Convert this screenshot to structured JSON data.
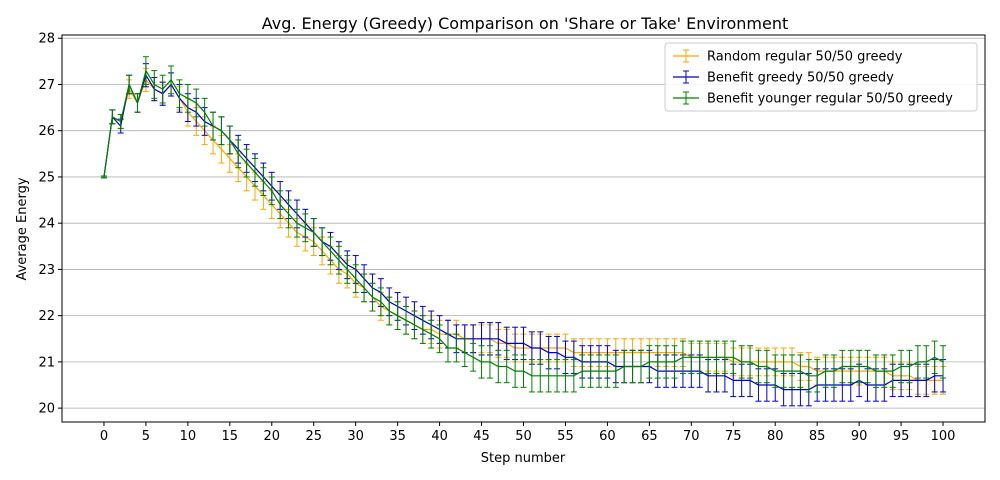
{
  "chart_data": {
    "type": "line",
    "title": "Avg. Energy (Greedy) Comparison on 'Share or Take' Environment",
    "xlabel": "Step number",
    "ylabel": "Average Energy",
    "xlim": [
      -5,
      105
    ],
    "ylim": [
      19.7,
      28.07
    ],
    "xticks": [
      0,
      5,
      10,
      15,
      20,
      25,
      30,
      35,
      40,
      45,
      50,
      55,
      60,
      65,
      70,
      75,
      80,
      85,
      90,
      95,
      100
    ],
    "yticks": [
      20,
      21,
      22,
      23,
      24,
      25,
      26,
      27,
      28
    ],
    "grid": "horizontal",
    "legend_position": "top-right",
    "series": [
      {
        "name": "Random regular 50/50 greedy",
        "color": "#ffa500",
        "x": [
          0,
          1,
          2,
          3,
          4,
          5,
          6,
          7,
          8,
          9,
          10,
          11,
          12,
          13,
          14,
          15,
          16,
          17,
          18,
          19,
          20,
          21,
          22,
          23,
          24,
          25,
          26,
          27,
          28,
          29,
          30,
          31,
          32,
          33,
          34,
          35,
          36,
          37,
          38,
          39,
          40,
          41,
          42,
          43,
          44,
          45,
          46,
          47,
          48,
          49,
          50,
          51,
          52,
          53,
          54,
          55,
          56,
          57,
          58,
          59,
          60,
          61,
          62,
          63,
          64,
          65,
          66,
          67,
          68,
          69,
          70,
          71,
          72,
          73,
          74,
          75,
          76,
          77,
          78,
          79,
          80,
          81,
          82,
          83,
          84,
          85,
          86,
          87,
          88,
          89,
          90,
          91,
          92,
          93,
          94,
          95,
          96,
          97,
          98,
          99,
          100
        ],
        "y": [
          25.0,
          26.3,
          26.2,
          26.9,
          26.6,
          27.1,
          26.9,
          26.8,
          27.0,
          26.7,
          26.4,
          26.2,
          26.0,
          25.8,
          25.6,
          25.4,
          25.2,
          25.0,
          24.8,
          24.6,
          24.4,
          24.2,
          24.0,
          23.8,
          23.7,
          23.6,
          23.4,
          23.2,
          23.0,
          22.9,
          22.7,
          22.6,
          22.4,
          22.2,
          22.1,
          22.0,
          21.9,
          21.8,
          21.7,
          21.7,
          21.6,
          21.6,
          21.6,
          21.5,
          21.5,
          21.5,
          21.5,
          21.4,
          21.4,
          21.3,
          21.3,
          21.3,
          21.3,
          21.3,
          21.3,
          21.3,
          21.2,
          21.2,
          21.2,
          21.2,
          21.2,
          21.2,
          21.2,
          21.2,
          21.2,
          21.2,
          21.2,
          21.2,
          21.2,
          21.2,
          21.1,
          21.1,
          21.1,
          21.1,
          21.1,
          21.0,
          21.0,
          21.0,
          21.0,
          21.0,
          21.0,
          21.0,
          21.0,
          20.9,
          20.9,
          20.8,
          20.8,
          20.8,
          20.8,
          20.8,
          20.8,
          20.8,
          20.8,
          20.8,
          20.7,
          20.7,
          20.7,
          20.6,
          20.6,
          20.6,
          20.6
        ],
        "err": [
          0.02,
          0.15,
          0.15,
          0.2,
          0.2,
          0.25,
          0.25,
          0.25,
          0.25,
          0.25,
          0.3,
          0.3,
          0.3,
          0.3,
          0.3,
          0.3,
          0.3,
          0.3,
          0.3,
          0.3,
          0.3,
          0.3,
          0.3,
          0.3,
          0.3,
          0.3,
          0.3,
          0.3,
          0.3,
          0.3,
          0.3,
          0.3,
          0.3,
          0.3,
          0.3,
          0.3,
          0.3,
          0.3,
          0.3,
          0.3,
          0.3,
          0.3,
          0.3,
          0.3,
          0.3,
          0.3,
          0.3,
          0.3,
          0.3,
          0.3,
          0.3,
          0.3,
          0.3,
          0.3,
          0.3,
          0.3,
          0.3,
          0.3,
          0.3,
          0.3,
          0.3,
          0.3,
          0.3,
          0.3,
          0.3,
          0.3,
          0.3,
          0.3,
          0.3,
          0.3,
          0.3,
          0.3,
          0.3,
          0.3,
          0.3,
          0.3,
          0.3,
          0.3,
          0.3,
          0.3,
          0.3,
          0.3,
          0.3,
          0.3,
          0.3,
          0.3,
          0.3,
          0.3,
          0.3,
          0.3,
          0.3,
          0.3,
          0.3,
          0.3,
          0.3,
          0.3,
          0.3,
          0.3,
          0.3,
          0.3,
          0.3
        ]
      },
      {
        "name": "Benefit greedy 50/50 greedy",
        "color": "#0000cc",
        "x": [
          0,
          1,
          2,
          3,
          4,
          5,
          6,
          7,
          8,
          9,
          10,
          11,
          12,
          13,
          14,
          15,
          16,
          17,
          18,
          19,
          20,
          21,
          22,
          23,
          24,
          25,
          26,
          27,
          28,
          29,
          30,
          31,
          32,
          33,
          34,
          35,
          36,
          37,
          38,
          39,
          40,
          41,
          42,
          43,
          44,
          45,
          46,
          47,
          48,
          49,
          50,
          51,
          52,
          53,
          54,
          55,
          56,
          57,
          58,
          59,
          60,
          61,
          62,
          63,
          64,
          65,
          66,
          67,
          68,
          69,
          70,
          71,
          72,
          73,
          74,
          75,
          76,
          77,
          78,
          79,
          80,
          81,
          82,
          83,
          84,
          85,
          86,
          87,
          88,
          89,
          90,
          91,
          92,
          93,
          94,
          95,
          96,
          97,
          98,
          99,
          100
        ],
        "y": [
          25.0,
          26.3,
          26.1,
          27.0,
          26.6,
          27.2,
          26.9,
          26.8,
          27.0,
          26.7,
          26.5,
          26.4,
          26.2,
          26.1,
          26.0,
          25.8,
          25.6,
          25.4,
          25.2,
          25.0,
          24.8,
          24.6,
          24.4,
          24.2,
          24.0,
          23.8,
          23.6,
          23.5,
          23.3,
          23.1,
          23.0,
          22.8,
          22.6,
          22.5,
          22.3,
          22.2,
          22.1,
          22.0,
          21.9,
          21.8,
          21.7,
          21.6,
          21.5,
          21.5,
          21.5,
          21.5,
          21.5,
          21.5,
          21.4,
          21.4,
          21.4,
          21.3,
          21.3,
          21.2,
          21.2,
          21.1,
          21.1,
          21.0,
          21.0,
          21.0,
          21.0,
          20.9,
          20.9,
          20.9,
          20.9,
          20.9,
          20.8,
          20.8,
          20.8,
          20.8,
          20.8,
          20.8,
          20.7,
          20.7,
          20.7,
          20.6,
          20.6,
          20.6,
          20.5,
          20.5,
          20.5,
          20.4,
          20.4,
          20.4,
          20.4,
          20.5,
          20.5,
          20.5,
          20.5,
          20.5,
          20.6,
          20.5,
          20.5,
          20.5,
          20.6,
          20.6,
          20.6,
          20.6,
          20.6,
          20.7,
          20.7
        ],
        "err": [
          0.02,
          0.15,
          0.15,
          0.2,
          0.2,
          0.25,
          0.25,
          0.25,
          0.25,
          0.3,
          0.3,
          0.3,
          0.3,
          0.3,
          0.3,
          0.3,
          0.3,
          0.3,
          0.3,
          0.3,
          0.3,
          0.3,
          0.3,
          0.3,
          0.3,
          0.3,
          0.3,
          0.3,
          0.3,
          0.3,
          0.3,
          0.3,
          0.3,
          0.3,
          0.3,
          0.3,
          0.3,
          0.3,
          0.3,
          0.3,
          0.3,
          0.3,
          0.3,
          0.3,
          0.3,
          0.35,
          0.35,
          0.35,
          0.35,
          0.35,
          0.35,
          0.35,
          0.35,
          0.35,
          0.35,
          0.35,
          0.35,
          0.35,
          0.35,
          0.35,
          0.35,
          0.35,
          0.35,
          0.35,
          0.35,
          0.35,
          0.35,
          0.35,
          0.35,
          0.35,
          0.35,
          0.35,
          0.35,
          0.35,
          0.35,
          0.35,
          0.35,
          0.35,
          0.35,
          0.35,
          0.35,
          0.35,
          0.35,
          0.35,
          0.35,
          0.35,
          0.35,
          0.35,
          0.35,
          0.35,
          0.35,
          0.35,
          0.35,
          0.35,
          0.35,
          0.35,
          0.35,
          0.35,
          0.35,
          0.35,
          0.35
        ]
      },
      {
        "name": "Benefit younger regular 50/50 greedy",
        "color": "#008000",
        "x": [
          0,
          1,
          2,
          3,
          4,
          5,
          6,
          7,
          8,
          9,
          10,
          11,
          12,
          13,
          14,
          15,
          16,
          17,
          18,
          19,
          20,
          21,
          22,
          23,
          24,
          25,
          26,
          27,
          28,
          29,
          30,
          31,
          32,
          33,
          34,
          35,
          36,
          37,
          38,
          39,
          40,
          41,
          42,
          43,
          44,
          45,
          46,
          47,
          48,
          49,
          50,
          51,
          52,
          53,
          54,
          55,
          56,
          57,
          58,
          59,
          60,
          61,
          62,
          63,
          64,
          65,
          66,
          67,
          68,
          69,
          70,
          71,
          72,
          73,
          74,
          75,
          76,
          77,
          78,
          79,
          80,
          81,
          82,
          83,
          84,
          85,
          86,
          87,
          88,
          89,
          90,
          91,
          92,
          93,
          94,
          95,
          96,
          97,
          98,
          99,
          100
        ],
        "y": [
          25.0,
          26.3,
          26.2,
          27.0,
          26.6,
          27.3,
          27.0,
          26.9,
          27.1,
          26.8,
          26.7,
          26.6,
          26.4,
          26.1,
          26.0,
          25.8,
          25.5,
          25.3,
          25.1,
          24.9,
          24.7,
          24.4,
          24.2,
          24.0,
          23.9,
          23.8,
          23.6,
          23.4,
          23.2,
          23.0,
          22.8,
          22.6,
          22.4,
          22.3,
          22.1,
          22.0,
          21.9,
          21.8,
          21.7,
          21.6,
          21.5,
          21.3,
          21.3,
          21.2,
          21.1,
          21.0,
          21.0,
          20.9,
          20.9,
          20.8,
          20.8,
          20.7,
          20.7,
          20.7,
          20.7,
          20.7,
          20.7,
          20.8,
          20.8,
          20.8,
          20.8,
          20.8,
          20.9,
          20.9,
          20.9,
          21.0,
          21.0,
          21.0,
          21.0,
          21.1,
          21.1,
          21.1,
          21.1,
          21.1,
          21.1,
          21.1,
          21.0,
          21.0,
          20.9,
          20.9,
          20.8,
          20.8,
          20.8,
          20.8,
          20.7,
          20.7,
          20.8,
          20.8,
          20.9,
          20.9,
          20.9,
          20.9,
          20.8,
          20.8,
          20.8,
          20.9,
          20.9,
          21.0,
          21.0,
          21.1,
          21.0
        ],
        "err": [
          0.02,
          0.15,
          0.15,
          0.2,
          0.2,
          0.3,
          0.3,
          0.3,
          0.3,
          0.3,
          0.3,
          0.3,
          0.3,
          0.3,
          0.3,
          0.3,
          0.3,
          0.3,
          0.3,
          0.3,
          0.3,
          0.3,
          0.3,
          0.3,
          0.3,
          0.3,
          0.3,
          0.3,
          0.3,
          0.3,
          0.3,
          0.3,
          0.3,
          0.3,
          0.3,
          0.3,
          0.3,
          0.3,
          0.3,
          0.3,
          0.3,
          0.3,
          0.3,
          0.3,
          0.3,
          0.35,
          0.35,
          0.35,
          0.35,
          0.35,
          0.35,
          0.35,
          0.35,
          0.35,
          0.35,
          0.35,
          0.35,
          0.35,
          0.35,
          0.35,
          0.35,
          0.35,
          0.35,
          0.35,
          0.35,
          0.35,
          0.35,
          0.35,
          0.35,
          0.35,
          0.35,
          0.35,
          0.35,
          0.35,
          0.35,
          0.35,
          0.35,
          0.35,
          0.35,
          0.35,
          0.35,
          0.35,
          0.35,
          0.35,
          0.35,
          0.35,
          0.35,
          0.35,
          0.35,
          0.35,
          0.35,
          0.35,
          0.35,
          0.35,
          0.35,
          0.35,
          0.35,
          0.35,
          0.35,
          0.35,
          0.35
        ]
      }
    ]
  }
}
